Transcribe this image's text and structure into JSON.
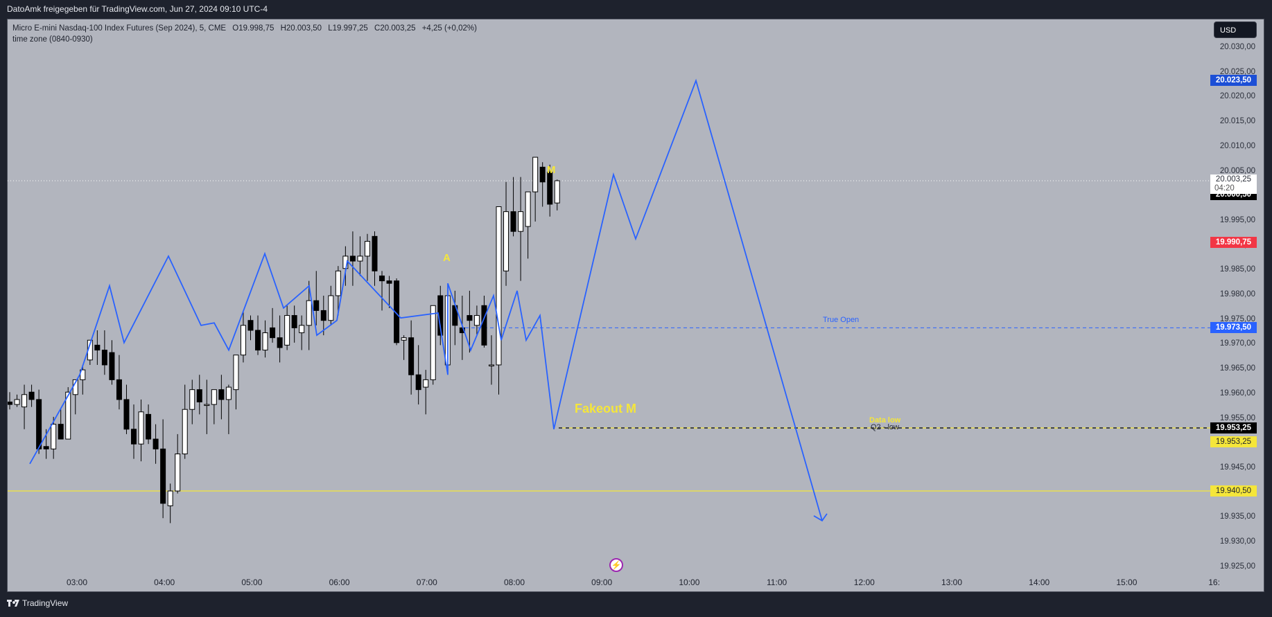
{
  "topbar": {
    "title": "DatoAmk freigegeben für TradingView.com, Jun 27, 2024 09:10 UTC-4"
  },
  "legend": {
    "symbol": "Micro E-mini Nasdaq-100 Index Futures (Sep 2024), 5, CME",
    "open": "O19.998,75",
    "high": "H20.003,50",
    "low": "L19.997,25",
    "close": "C20.003,25",
    "change": "+4,25 (+0,02%)",
    "indicator": "time zone (0840-0930)"
  },
  "currency_button": "USD",
  "price_axis": {
    "ticks": [
      "20.030,00",
      "20.025,00",
      "20.020,00",
      "20.015,00",
      "20.010,00",
      "20.005,00",
      "20.000,00",
      "19.995,00",
      "19.990,00",
      "19.985,00",
      "19.980,00",
      "19.975,00",
      "19.970,00",
      "19.965,00",
      "19.960,00",
      "19.955,00",
      "19.950,00",
      "19.945,00",
      "19.940,00",
      "19.935,00",
      "19.930,00",
      "19.925,00"
    ],
    "tags": [
      {
        "label": "20.023,50",
        "price": 20023.5,
        "bg": "#1c4fd6",
        "fg": "#ffffff"
      },
      {
        "label": "20.000,50",
        "price": 20000.5,
        "bg": "#000000",
        "fg": "#ffffff"
      },
      {
        "label": "19.990,75",
        "price": 19990.75,
        "bg": "#f23645",
        "fg": "#ffffff"
      },
      {
        "label": "19.973,50",
        "price": 19973.5,
        "bg": "#2962ff",
        "fg": "#ffffff"
      },
      {
        "label": "19.953,25",
        "price": 19953.25,
        "bg": "#000000",
        "fg": "#ffffff"
      },
      {
        "label": "19.953,25",
        "price": 19950.5,
        "bg": "#f5e63a",
        "fg": "#1e222d"
      },
      {
        "label": "19.940,50",
        "price": 19940.5,
        "bg": "#f5e63a",
        "fg": "#1e222d"
      }
    ],
    "last_price": {
      "price": "20.003,25",
      "countdown": "04:20"
    }
  },
  "time_axis": {
    "ticks": [
      "03:00",
      "04:00",
      "05:00",
      "06:00",
      "07:00",
      "08:00",
      "09:00",
      "10:00",
      "11:00",
      "12:00",
      "13:00",
      "14:00",
      "15:00",
      "16:"
    ]
  },
  "annotations": {
    "m_label": "M",
    "a_label": "A",
    "fakeout_label": "Fakeout M",
    "true_open_label": "True Open",
    "data_low_label": "Data low",
    "q2_low_label": "Q2 - low"
  },
  "colors": {
    "chart_bg": "#b2b5be",
    "projection_line": "#2962ff",
    "true_open_line": "#2962ff",
    "yellow_line": "#f5e63a",
    "bull_candle": "#ffffff",
    "bear_candle": "#000000"
  },
  "icons": {
    "lightning": "⚡"
  },
  "footer": {
    "logo_text": "TradingView"
  },
  "chart_data": {
    "type": "candlestick",
    "title": "Micro E-mini Nasdaq-100 Index Futures (Sep 2024), 5, CME",
    "timeframe": "5m",
    "x_start": "02:10",
    "candles": [
      [
        19958.5,
        19960.5,
        19957.0,
        19958.0
      ],
      [
        19958.0,
        19960.0,
        19957.5,
        19959.0
      ],
      [
        19957.5,
        19962.0,
        19953.0,
        19960.0
      ],
      [
        19960.5,
        19962.0,
        19957.5,
        19959.0
      ],
      [
        19959.0,
        19961.0,
        19948.0,
        19949.0
      ],
      [
        19949.5,
        19953.0,
        19947.0,
        19949.0
      ],
      [
        19949.0,
        19955.5,
        19947.0,
        19954.0
      ],
      [
        19954.0,
        19957.0,
        19951.0,
        19951.0
      ],
      [
        19951.0,
        19961.5,
        19951.0,
        19960.5
      ],
      [
        19960.0,
        19962.0,
        19956.0,
        19963.0
      ],
      [
        19963.0,
        19966.0,
        19960.0,
        19965.0
      ],
      [
        19967.0,
        19970.0,
        19966.0,
        19971.0
      ],
      [
        19970.0,
        19973.0,
        19966.0,
        19969.0
      ],
      [
        19969.0,
        19973.0,
        19964.0,
        19966.0
      ],
      [
        19968.5,
        19971.0,
        19962.0,
        19963.0
      ],
      [
        19963.0,
        19968.0,
        19957.0,
        19959.0
      ],
      [
        19959.0,
        19962.0,
        19952.0,
        19953.0
      ],
      [
        19953.0,
        19958.0,
        19947.0,
        19950.0
      ],
      [
        19950.0,
        19959.0,
        19946.5,
        19956.5
      ],
      [
        19956.0,
        19958.0,
        19950.0,
        19951.0
      ],
      [
        19951.0,
        19954.0,
        19946.0,
        19949.0
      ],
      [
        19949.0,
        19955.0,
        19935.0,
        19938.0
      ],
      [
        19937.5,
        19942.0,
        19934.0,
        19940.5
      ],
      [
        19940.5,
        19952.0,
        19940.0,
        19948.0
      ],
      [
        19948.0,
        19962.0,
        19947.0,
        19957.0
      ],
      [
        19957.0,
        19963.0,
        19954.0,
        19961.0
      ],
      [
        19961.0,
        19964.0,
        19956.0,
        19958.5
      ],
      [
        19958.0,
        19963.0,
        19952.0,
        19958.0
      ],
      [
        19958.0,
        19960.0,
        19954.0,
        19961.0
      ],
      [
        19961.0,
        19964.0,
        19955.0,
        19959.0
      ],
      [
        19959.0,
        19962.0,
        19952.0,
        19961.5
      ],
      [
        19961.0,
        19966.0,
        19957.0,
        19968.0
      ],
      [
        19968.0,
        19977.0,
        19966.5,
        19974.0
      ],
      [
        19975.0,
        19976.0,
        19971.0,
        19973.0
      ],
      [
        19973.0,
        19976.0,
        19968.0,
        19969.0
      ],
      [
        19969.0,
        19975.0,
        19967.5,
        19972.5
      ],
      [
        19973.5,
        19977.5,
        19970.5,
        19971.5
      ],
      [
        19971.5,
        19976.0,
        19966.5,
        19969.5
      ],
      [
        19970.0,
        19978.0,
        19969.0,
        19976.0
      ],
      [
        19976.0,
        19978.0,
        19970.5,
        19973.5
      ],
      [
        19972.5,
        19976.0,
        19969.0,
        19974.0
      ],
      [
        19974.0,
        19983.0,
        19969.0,
        19979.0
      ],
      [
        19979.0,
        19985.0,
        19974.0,
        19977.0
      ],
      [
        19977.0,
        19980.0,
        19972.0,
        19975.0
      ],
      [
        19975.0,
        19982.0,
        19974.0,
        19980.0
      ],
      [
        19980.0,
        19986.0,
        19976.0,
        19985.0
      ],
      [
        19985.5,
        19990.0,
        19982.0,
        19988.0
      ],
      [
        19988.0,
        19993.0,
        19982.0,
        19987.0
      ],
      [
        19987.0,
        19992.0,
        19984.0,
        19988.0
      ],
      [
        19988.0,
        19992.5,
        19983.0,
        19991.0
      ],
      [
        19992.0,
        19993.0,
        19982.0,
        19985.0
      ],
      [
        19984.0,
        19985.0,
        19977.0,
        19983.0
      ],
      [
        19983.0,
        19984.0,
        19977.5,
        19982.5
      ],
      [
        19983.0,
        19983.5,
        19970.0,
        19970.5
      ],
      [
        19971.0,
        19972.0,
        19967.0,
        19971.5
      ],
      [
        19971.5,
        19975.0,
        19960.0,
        19964.0
      ],
      [
        19964.0,
        19970.0,
        19958.0,
        19961.0
      ],
      [
        19961.5,
        19965.0,
        19956.0,
        19963.0
      ],
      [
        19963.0,
        19974.0,
        19962.0,
        19978.0
      ],
      [
        19980.0,
        19982.0,
        19970.0,
        19972.0
      ],
      [
        19966.0,
        19978.5,
        19965.0,
        19980.0
      ],
      [
        19978.0,
        19981.0,
        19970.0,
        19974.0
      ],
      [
        19973.5,
        19980.0,
        19967.0,
        19972.5
      ],
      [
        19976.0,
        19981.0,
        19968.5,
        19975.0
      ],
      [
        19974.0,
        19978.0,
        19972.0,
        19976.0
      ],
      [
        19978.0,
        19980.0,
        19969.5,
        19970.0
      ],
      [
        19966.0,
        19972.0,
        19962.0,
        19966.0
      ],
      [
        19966.0,
        19988.0,
        19960.0,
        19998.0
      ],
      [
        19985.0,
        20003.0,
        19982.0,
        19997.0
      ],
      [
        19997.0,
        20004.0,
        19992.0,
        19993.0
      ],
      [
        19993.0,
        20004.0,
        19983.0,
        19997.0
      ],
      [
        19994.0,
        20000.0,
        19987.5,
        20001.0
      ],
      [
        20001.0,
        20003.0,
        19995.0,
        20008.0
      ],
      [
        20006.0,
        20007.0,
        19998.0,
        20003.0
      ],
      [
        20005.0,
        20006.5,
        19996.0,
        19998.5
      ],
      [
        19998.75,
        20003.5,
        19997.25,
        20003.25
      ]
    ],
    "projection_path_prices": [
      19946.5,
      19966.0,
      19982.0,
      19973.0,
      19988.0,
      19976.0,
      19976.5,
      19964.0,
      19982.0,
      19968.5,
      19981.0,
      19973.5,
      19979.0,
      19967.5,
      19953.25,
      20004.5,
      19992.0,
      20023.5,
      19934.0
    ],
    "levels": [
      {
        "name": "True Open",
        "price": 19973.5,
        "style": "dashed",
        "color": "#2962ff"
      },
      {
        "name": "Data low / Q2 - low",
        "price": 19953.25,
        "style": "dashed",
        "color": "#000000/#f5e63a"
      },
      {
        "name": "Yellow level",
        "price": 19940.5,
        "style": "solid",
        "color": "#f5e63a"
      },
      {
        "name": "Last price",
        "price": 20003.25,
        "style": "dotted",
        "color": "#ffffff"
      }
    ],
    "ylim": [
      19925,
      20030
    ]
  }
}
